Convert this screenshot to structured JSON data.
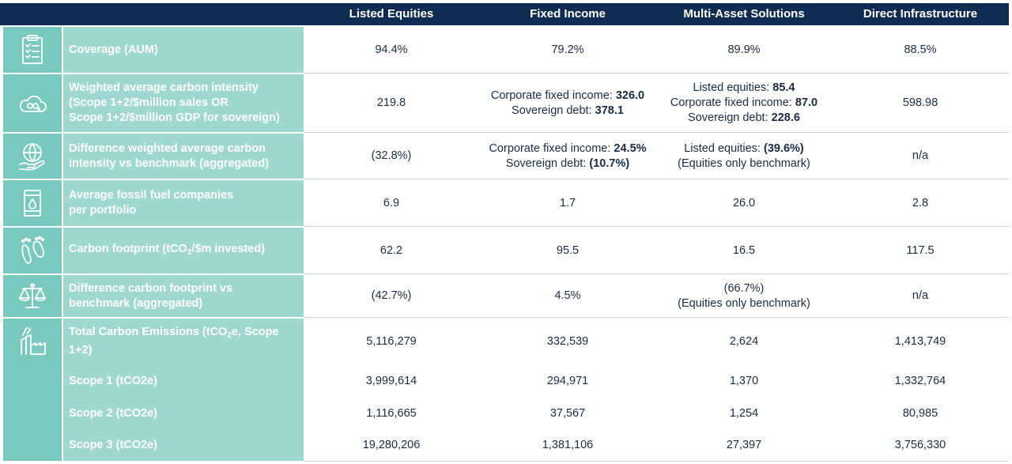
{
  "header": {
    "columns": [
      "Listed Equities",
      "Fixed Income",
      "Multi-Asset Solutions",
      "Direct Infrastructure"
    ]
  },
  "rows": [
    {
      "icon": "clipboard-checklist-icon",
      "label": "Coverage (AUM)",
      "values": [
        "94.4%",
        "79.2%",
        "89.9%",
        "88.5%"
      ]
    },
    {
      "icon": "cloud-co2-icon",
      "label_lines": [
        "Weighted average carbon intensity",
        "(Scope 1+2/$million sales OR",
        "Scope 1+2/$million GDP for sovereign)"
      ],
      "listed_equities": "219.8",
      "fixed_income": [
        {
          "text": "Corporate fixed income: ",
          "value": "326.0"
        },
        {
          "text": "Sovereign debt: ",
          "value": "378.1"
        }
      ],
      "multi_asset": [
        {
          "text": "Listed equities: ",
          "value": "85.4"
        },
        {
          "text": "Corporate fixed income: ",
          "value": "87.0"
        },
        {
          "text": "Sovereign debt: ",
          "value": "228.6"
        }
      ],
      "direct_infrastructure": "598.98"
    },
    {
      "icon": "globe-hand-icon",
      "label_lines": [
        "Difference weighted average carbon",
        "intensity vs benchmark (aggregated)"
      ],
      "listed_equities": "(32.8%)",
      "fixed_income": [
        {
          "text": "Corporate fixed income: ",
          "value": "24.5%"
        },
        {
          "text": "Sovereign debt: ",
          "value": "(10.7%)"
        }
      ],
      "multi_asset": [
        {
          "text": "Listed equities: ",
          "value": "(39.6%)"
        },
        {
          "text": "(Equities only benchmark)",
          "value": ""
        }
      ],
      "direct_infrastructure": "n/a"
    },
    {
      "icon": "oil-barrel-icon",
      "label_lines": [
        "Average fossil fuel companies",
        "per portfolio"
      ],
      "values": [
        "6.9",
        "1.7",
        "26.0",
        "2.8"
      ]
    },
    {
      "icon": "footprint-icon",
      "label_parts": {
        "before": "Carbon footprint (tCO",
        "sub": "2",
        "after": "/$m invested)"
      },
      "values": [
        "62.2",
        "95.5",
        "16.5",
        "117.5"
      ]
    },
    {
      "icon": "balance-scale-icon",
      "label_lines": [
        "Difference carbon footprint vs",
        "benchmark (aggregated)"
      ],
      "listed_equities": "(42.7%)",
      "fixed_income": "4.5%",
      "multi_asset_lines": [
        "(66.7%)",
        "(Equities only benchmark)"
      ],
      "direct_infrastructure": "n/a"
    },
    {
      "icon": "factory-emissions-icon",
      "label_parts": {
        "before": "Total Carbon Emissions (tCO",
        "sub": "2",
        "after": "e, Scope 1+2)"
      },
      "values": [
        "5,116,279",
        "332,539",
        "2,624",
        "1,413,749"
      ]
    },
    {
      "label": "Scope 1 (tCO2e)",
      "values": [
        "3,999,614",
        "294,971",
        "1,370",
        "1,332,764"
      ]
    },
    {
      "label": "Scope 2 (tCO2e)",
      "values": [
        "1,116,665",
        "37,567",
        "1,254",
        "80,985"
      ]
    },
    {
      "label": "Scope 3 (tCO2e)",
      "values": [
        "19,280,206",
        "1,381,106",
        "27,397",
        "3,756,330"
      ]
    }
  ]
}
